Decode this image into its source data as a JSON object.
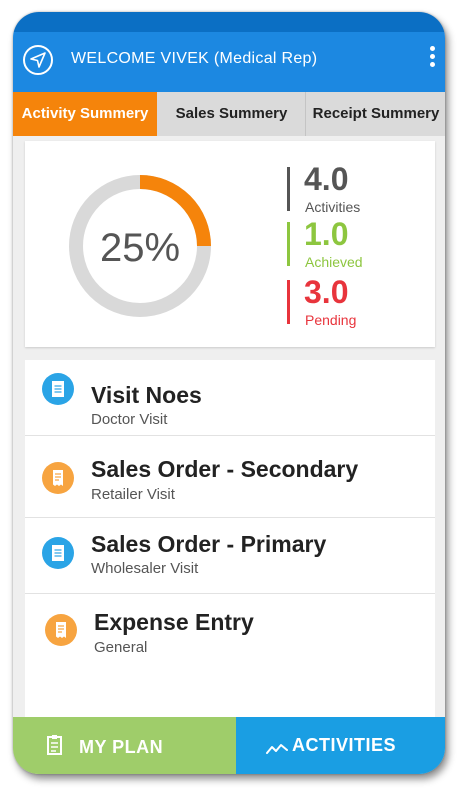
{
  "header": {
    "title": "WELCOME VIVEK (Medical Rep)",
    "icons": [
      "navigation-icon",
      "more-vertical-icon"
    ]
  },
  "tabs": [
    {
      "label": "Activity Summery",
      "active": true
    },
    {
      "label": "Sales Summery",
      "active": false
    },
    {
      "label": "Receipt Summery",
      "active": false
    }
  ],
  "summary": {
    "progress_label": "25%",
    "progress_fraction": 0.25,
    "stats": [
      {
        "value": "4.0",
        "label": "Activities",
        "color": "#555555"
      },
      {
        "value": "1.0",
        "label": "Achieved",
        "color": "#8dc63f"
      },
      {
        "value": "3.0",
        "label": "Pending",
        "color": "#e8343c"
      }
    ],
    "colors": {
      "progress": "#f5840b",
      "track": "#d9d9d9",
      "text": "#555555"
    }
  },
  "list": [
    {
      "title": "Visit Noes",
      "subtitle": "Doctor Visit",
      "icon": "document-icon",
      "icon_color": "#2aa4e6"
    },
    {
      "title": "Sales Order - Secondary",
      "subtitle": "Retailer Visit",
      "icon": "receipt-icon",
      "icon_color": "#f7a440"
    },
    {
      "title": "Sales Order - Primary",
      "subtitle": "Wholesaler Visit",
      "icon": "document-icon",
      "icon_color": "#2aa4e6"
    },
    {
      "title": "Expense Entry",
      "subtitle": "General",
      "icon": "receipt-icon",
      "icon_color": "#f7a440"
    }
  ],
  "bottom": {
    "plan_label": "MY PLAN",
    "activities_label": "ACTIVITIES",
    "colors": {
      "plan": "#9fcd6a",
      "activities": "#1a9ee3"
    }
  }
}
